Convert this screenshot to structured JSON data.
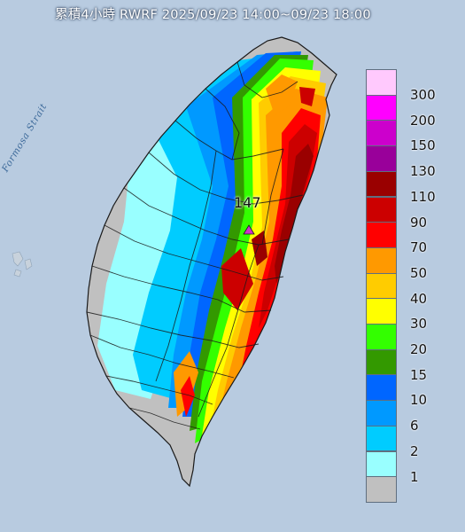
{
  "title": "累積4小時 RWRF 2025/09/23 14:00~09/23 18:00",
  "strait_label": "Formosa Strait",
  "max_label": "147",
  "legend": {
    "levels": [
      {
        "label": "300",
        "color": "#ffc9fd"
      },
      {
        "label": "200",
        "color": "#ff00ff"
      },
      {
        "label": "150",
        "color": "#cc00cc"
      },
      {
        "label": "130",
        "color": "#99009a"
      },
      {
        "label": "110",
        "color": "#9a0000"
      },
      {
        "label": "90",
        "color": "#cc0000"
      },
      {
        "label": "70",
        "color": "#ff0000"
      },
      {
        "label": "50",
        "color": "#ff9900"
      },
      {
        "label": "40",
        "color": "#ffcc00"
      },
      {
        "label": "30",
        "color": "#ffff00"
      },
      {
        "label": "20",
        "color": "#33ff00"
      },
      {
        "label": "15",
        "color": "#339900"
      },
      {
        "label": "10",
        "color": "#0066ff"
      },
      {
        "label": "6",
        "color": "#0099ff"
      },
      {
        "label": "2",
        "color": "#00ccff"
      },
      {
        "label": "1",
        "color": "#99ffff"
      },
      {
        "label": "",
        "color": "#c0c0c0"
      }
    ]
  },
  "colors": {
    "sea": "#b8cbe0",
    "land_no_rain": "#c0c0c0",
    "boundary": "#1a1a1a",
    "max_marker": "#cc33cc"
  }
}
